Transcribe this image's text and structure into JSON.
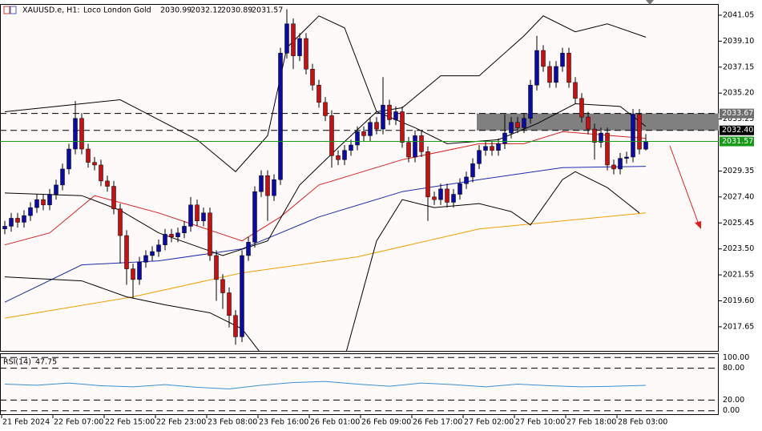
{
  "chart_data": {
    "type": "candlestick",
    "symbol": "XAUUSD.e, H1:",
    "description": "Loco London Gold",
    "categories": [
      "21 Feb 2024",
      null,
      null,
      null,
      null,
      null,
      null,
      null,
      "22 Feb 07:00",
      null,
      null,
      null,
      null,
      null,
      null,
      null,
      "22 Feb 15:00",
      null,
      null,
      null,
      null,
      null,
      null,
      null,
      "22 Feb 23:00",
      null,
      null,
      null,
      null,
      null,
      null,
      null,
      "23 Feb 08:00",
      null,
      null,
      null,
      null,
      null,
      null,
      null,
      "23 Feb 16:00",
      null,
      null,
      null,
      null,
      null,
      null,
      null,
      "26 Feb 01:00",
      null,
      null,
      null,
      null,
      null,
      null,
      null,
      "26 Feb 09:00",
      null,
      null,
      null,
      null,
      null,
      null,
      null,
      "26 Feb 17:00",
      null,
      null,
      null,
      null,
      null,
      null,
      null,
      "27 Feb 02:00",
      null,
      null,
      null,
      null,
      null,
      null,
      null,
      "27 Feb 10:00",
      null,
      null,
      null,
      null,
      null,
      null,
      null,
      "27 Feb 18:00",
      null,
      null,
      null,
      null,
      null,
      null,
      null,
      "28 Feb 03:00",
      null,
      null,
      null,
      null
    ],
    "open": [
      2025.0,
      2025.2,
      2025.8,
      2025.5,
      2026.0,
      2026.6,
      2027.2,
      2026.8,
      2027.6,
      2028.3,
      2029.5,
      2031.0,
      2033.3,
      2031.0,
      2030.0,
      2029.8,
      2028.6,
      2028.2,
      2026.5,
      2024.5,
      2022.0,
      2021.2,
      2022.5,
      2023.0,
      2023.3,
      2023.8,
      2024.6,
      2024.4,
      2024.7,
      2025.2,
      2026.8,
      2025.6,
      2026.2,
      2023.0,
      2021.2,
      2020.2,
      2018.5,
      2016.9,
      2023.0,
      2024.0,
      2027.8,
      2029.0,
      2027.5,
      2028.7,
      2038.2,
      2040.4,
      2038.0,
      2039.3,
      2037.0,
      2035.8,
      2034.5,
      2033.5,
      2030.5,
      2030.2,
      2030.9,
      2031.3,
      2032.3,
      2032.0,
      2033.0,
      2032.5,
      2034.3,
      2033.2,
      2033.8,
      2031.5,
      2030.4,
      2032.0,
      2030.8,
      2027.4,
      2027.2,
      2028.0,
      2027.0,
      2027.6,
      2028.4,
      2028.9,
      2029.9,
      2030.9,
      2031.2,
      2030.9,
      2031.4,
      2032.2,
      2033.0,
      2032.6,
      2033.3,
      2035.8,
      2038.4,
      2037.2,
      2036.0,
      2037.2,
      2038.2,
      2036.0,
      2034.8,
      2033.4,
      2032.5,
      2031.5,
      2032.2,
      2029.8,
      2029.5,
      2030.3,
      2030.4,
      2033.6,
      2030.99
    ],
    "high": [
      2025.6,
      2026.2,
      2026.2,
      2026.4,
      2027.0,
      2027.6,
      2027.6,
      2028.0,
      2028.7,
      2029.9,
      2031.4,
      2034.6,
      2033.7,
      2031.4,
      2030.4,
      2030.2,
      2029.0,
      2028.6,
      2026.9,
      2024.9,
      2022.4,
      2022.9,
      2023.4,
      2023.7,
      2024.2,
      2025.0,
      2025.0,
      2025.1,
      2025.6,
      2027.4,
      2027.2,
      2026.6,
      2026.6,
      2023.4,
      2021.6,
      2020.6,
      2018.9,
      2023.4,
      2024.4,
      2028.2,
      2029.4,
      2029.4,
      2029.1,
      2038.6,
      2041.5,
      2040.8,
      2039.7,
      2039.7,
      2037.4,
      2036.2,
      2034.9,
      2033.9,
      2030.9,
      2031.3,
      2031.7,
      2032.7,
      2032.7,
      2033.4,
      2033.4,
      2036.4,
      2034.7,
      2034.2,
      2034.2,
      2031.9,
      2032.4,
      2032.4,
      2031.2,
      2027.8,
      2028.4,
      2028.4,
      2028.0,
      2028.8,
      2029.3,
      2030.3,
      2031.3,
      2031.6,
      2031.6,
      2031.8,
      2033.6,
      2033.4,
      2033.4,
      2033.7,
      2036.2,
      2039.5,
      2038.8,
      2037.6,
      2037.6,
      2038.6,
      2038.6,
      2036.4,
      2035.2,
      2033.8,
      2032.9,
      2032.6,
      2032.6,
      2030.2,
      2030.7,
      2030.8,
      2034.0,
      2034.0,
      2032.12
    ],
    "low": [
      2024.6,
      2024.8,
      2025.1,
      2025.1,
      2025.6,
      2026.2,
      2026.4,
      2026.4,
      2027.2,
      2027.9,
      2029.1,
      2030.6,
      2030.6,
      2029.6,
      2029.4,
      2028.2,
      2027.8,
      2026.1,
      2022.4,
      2020.8,
      2019.8,
      2020.8,
      2022.1,
      2022.6,
      2022.9,
      2023.4,
      2024.0,
      2024.0,
      2024.3,
      2024.8,
      2025.2,
      2025.2,
      2022.6,
      2019.6,
      2019.0,
      2017.6,
      2016.3,
      2016.5,
      2022.6,
      2023.6,
      2027.4,
      2025.6,
      2027.1,
      2028.3,
      2037.8,
      2037.0,
      2037.6,
      2036.6,
      2035.4,
      2034.1,
      2033.1,
      2029.6,
      2029.8,
      2029.8,
      2030.5,
      2030.9,
      2031.6,
      2031.6,
      2032.1,
      2032.1,
      2032.8,
      2032.8,
      2031.1,
      2030.0,
      2030.0,
      2030.4,
      2025.6,
      2026.8,
      2026.8,
      2026.6,
      2026.6,
      2027.2,
      2028.0,
      2028.5,
      2029.5,
      2030.5,
      2030.5,
      2030.5,
      2031.0,
      2031.8,
      2032.2,
      2032.2,
      2032.9,
      2035.4,
      2036.8,
      2035.6,
      2035.6,
      2036.8,
      2035.6,
      2034.4,
      2033.0,
      2032.1,
      2030.2,
      2031.1,
      2029.4,
      2029.1,
      2029.1,
      2029.9,
      2030.0,
      2030.6,
      2030.89
    ],
    "close": [
      2025.2,
      2025.8,
      2025.5,
      2026.0,
      2026.6,
      2027.2,
      2026.8,
      2027.6,
      2028.3,
      2029.5,
      2031.0,
      2033.3,
      2031.0,
      2030.0,
      2029.8,
      2028.6,
      2028.2,
      2026.5,
      2024.5,
      2022.0,
      2021.2,
      2022.5,
      2023.0,
      2023.3,
      2023.8,
      2024.6,
      2024.4,
      2024.7,
      2025.2,
      2026.8,
      2025.6,
      2026.2,
      2023.0,
      2021.2,
      2020.2,
      2018.5,
      2016.9,
      2023.0,
      2024.0,
      2027.8,
      2029.0,
      2027.5,
      2028.7,
      2038.2,
      2040.4,
      2038.0,
      2039.3,
      2037.0,
      2035.8,
      2034.5,
      2033.5,
      2030.5,
      2030.2,
      2030.9,
      2031.3,
      2032.3,
      2032.0,
      2033.0,
      2032.5,
      2034.3,
      2033.2,
      2033.8,
      2031.5,
      2030.4,
      2032.0,
      2030.8,
      2027.4,
      2027.2,
      2028.0,
      2027.0,
      2027.6,
      2028.4,
      2028.9,
      2029.9,
      2030.9,
      2031.2,
      2030.9,
      2031.4,
      2032.2,
      2033.0,
      2032.6,
      2033.3,
      2035.8,
      2038.4,
      2037.2,
      2036.0,
      2037.2,
      2038.2,
      2036.0,
      2034.8,
      2033.4,
      2032.5,
      2031.5,
      2032.2,
      2029.8,
      2029.5,
      2030.3,
      2030.4,
      2033.6,
      2030.99,
      2031.57
    ],
    "up_color": "#0a0aa8",
    "down_color": "#c81010",
    "ylim": [
      2015.84,
      2041.89
    ],
    "yticks": [
      2041.05,
      {
        "value": 2039.1,
        "label": "2039.10"
      },
      2037.15,
      {
        "value": 2035.2,
        "label": "2035.20"
      },
      2033.25,
      2029.35,
      {
        "value": 2027.4,
        "label": "2027.40"
      },
      2025.45,
      {
        "value": 2023.5,
        "label": "2023.50"
      },
      2021.55,
      {
        "value": 2019.6,
        "label": "2019.60"
      },
      2017.65
    ],
    "levels": [
      {
        "value": 2033.67,
        "label": "2033.67"
      },
      {
        "value": 2032.4,
        "label": "2032.40"
      }
    ],
    "lines": [
      {
        "color": "#f0a000",
        "x": [
          0,
          20,
          37,
          55,
          74,
          87,
          100
        ],
        "values": [
          2018.3,
          2019.9,
          2021.7,
          2022.9,
          2025.0,
          2025.6,
          2026.2
        ]
      },
      {
        "color": "#1a2ab0",
        "x": [
          0,
          12,
          24,
          37,
          49,
          62,
          74,
          87,
          100
        ],
        "values": [
          2019.5,
          2022.3,
          2022.6,
          2023.5,
          2025.9,
          2027.8,
          2028.7,
          2029.6,
          2029.7
        ]
      },
      {
        "color": "#d82020",
        "x": [
          0,
          7,
          14,
          24,
          37,
          43,
          49,
          62,
          74,
          81,
          87,
          100
        ],
        "values": [
          2023.8,
          2024.7,
          2027.5,
          2026.2,
          2024.1,
          2025.9,
          2028.3,
          2030.2,
          2031.4,
          2031.4,
          2032.3,
          2031.8
        ]
      },
      {
        "color": "#000000",
        "x": [
          0,
          12,
          18,
          24,
          30,
          36,
          41,
          44,
          49,
          53,
          58,
          62,
          68,
          74,
          81,
          84,
          89,
          94,
          100
        ],
        "values": [
          2033.8,
          2034.4,
          2034.7,
          2033.2,
          2031.7,
          2029.3,
          2032.0,
          2038.6,
          2041.0,
          2040.1,
          2033.8,
          2034.1,
          2036.5,
          2036.5,
          2039.5,
          2041.0,
          2039.8,
          2040.4,
          2039.4
        ]
      },
      {
        "color": "#000000",
        "x": [
          0,
          12,
          18,
          24,
          34,
          41,
          46,
          52,
          58,
          64,
          69,
          77,
          83,
          89,
          96,
          100
        ],
        "values": [
          2027.7,
          2027.5,
          2026.4,
          2024.7,
          2023.0,
          2024.1,
          2028.3,
          2031.1,
          2033.8,
          2032.6,
          2031.4,
          2031.7,
          2032.9,
          2034.4,
          2034.2,
          2032.7
        ]
      },
      {
        "color": "#000000",
        "x": [
          0,
          12,
          19,
          25,
          32,
          37,
          41,
          53,
          58,
          62,
          67,
          74,
          79,
          82,
          87,
          89,
          94,
          99
        ],
        "values": [
          2021.4,
          2021.1,
          2019.9,
          2019.3,
          2018.7,
          2017.5,
          2015.0,
          2015.3,
          2024.1,
          2027.2,
          2026.6,
          2026.9,
          2026.3,
          2025.3,
          2028.7,
          2029.3,
          2028.1,
          2026.2
        ]
      }
    ],
    "indicator": {
      "name": "RSI(14)",
      "color": "#3a8fd0",
      "x": [
        0,
        5,
        10,
        15,
        20,
        25,
        30,
        35,
        40,
        45,
        50,
        55,
        60,
        65,
        70,
        75,
        80,
        85,
        90,
        95,
        100
      ],
      "values": [
        50,
        48,
        52,
        47,
        45,
        49,
        44,
        41,
        48,
        53,
        55,
        50,
        46,
        52,
        49,
        45,
        50,
        47,
        45,
        46,
        47.75
      ],
      "ylim": [
        -8,
        108
      ],
      "yticks": [
        {
          "value": 100,
          "label": "100.00"
        },
        {
          "value": 80,
          "label": "80.00"
        },
        {
          "value": 20,
          "label": "20.00"
        },
        {
          "value": 0,
          "label": "0.00"
        }
      ]
    }
  }
}
